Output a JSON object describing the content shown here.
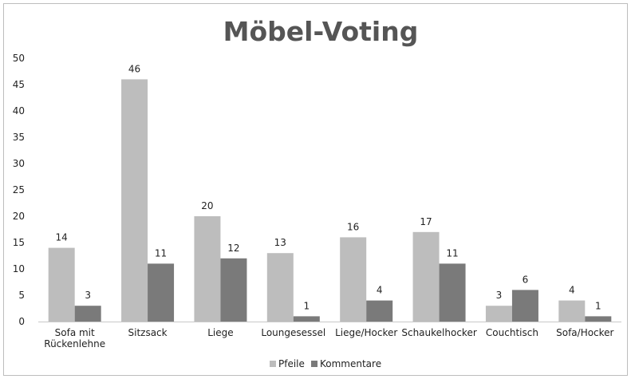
{
  "chart_data": {
    "type": "bar",
    "title": "Möbel-Voting",
    "xlabel": "",
    "ylabel": "",
    "ylim": [
      0,
      50
    ],
    "yticks": [
      0,
      5,
      10,
      15,
      20,
      25,
      30,
      35,
      40,
      45,
      50
    ],
    "grid": false,
    "legend_position": "bottom",
    "categories": [
      [
        "Sofa mit",
        "Rückenlehne"
      ],
      [
        "Sitzsack"
      ],
      [
        "Liege"
      ],
      [
        "Loungesessel"
      ],
      [
        "Liege/Hocker"
      ],
      [
        "Schaukelhocker"
      ],
      [
        "Couchtisch"
      ],
      [
        "Sofa/Hocker"
      ]
    ],
    "series": [
      {
        "name": "Pfeile",
        "color": "#bdbdbd",
        "values": [
          14,
          46,
          20,
          13,
          16,
          17,
          3,
          4
        ]
      },
      {
        "name": "Kommentare",
        "color": "#7a7a7a",
        "values": [
          3,
          11,
          12,
          1,
          4,
          11,
          6,
          1
        ]
      }
    ]
  }
}
